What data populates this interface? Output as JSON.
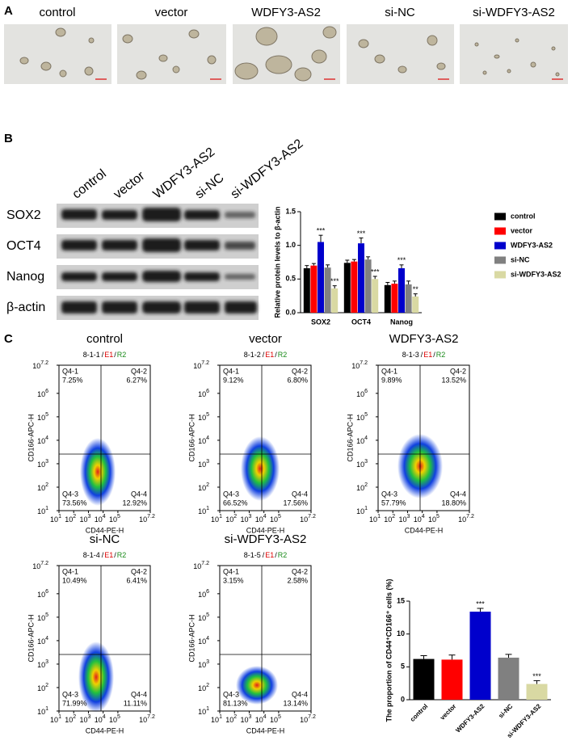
{
  "panel_labels": [
    "A",
    "B",
    "C"
  ],
  "micrographs": [
    "control",
    "vector",
    "WDFY3-AS2",
    "si-NC",
    "si-WDFY3-AS2"
  ],
  "western_blot": {
    "lanes": [
      "control",
      "vector",
      "WDFY3-AS2",
      "si-NC",
      "si-WDFY3-AS2"
    ],
    "proteins": [
      "SOX2",
      "OCT4",
      "Nanog",
      "β-actin"
    ]
  },
  "flow_cytometry": {
    "base": "10",
    "xlim": [
      1,
      7.2
    ],
    "ylim": [
      1,
      7.2
    ],
    "xticks": [
      1,
      2,
      3,
      4,
      5,
      7.2
    ],
    "yticks": [
      1,
      2,
      3,
      4,
      5,
      6,
      7.2
    ],
    "xlabel": "CD44-PE-H",
    "ylabel": "CD166-APC-H",
    "separator": "/",
    "gate_parts": [
      "E1",
      "R2"
    ],
    "quadrants": [
      "Q4-1",
      "Q4-2",
      "Q4-3",
      "Q4-4"
    ],
    "plots": [
      {
        "title": "control",
        "sample": "8-1-1",
        "percentages": [
          "7.25%",
          "6.27%",
          "73.56%",
          "12.92%"
        ]
      },
      {
        "title": "vector",
        "sample": "8-1-2",
        "percentages": [
          "9.12%",
          "6.80%",
          "66.52%",
          "17.56%"
        ]
      },
      {
        "title": "WDFY3-AS2",
        "sample": "8-1-3",
        "percentages": [
          "9.89%",
          "13.52%",
          "57.79%",
          "18.80%"
        ]
      },
      {
        "title": "si-NC",
        "sample": "8-1-4",
        "percentages": [
          "10.49%",
          "6.41%",
          "71.99%",
          "11.11%"
        ]
      },
      {
        "title": "si-WDFY3-AS2",
        "sample": "8-1-5",
        "percentages": [
          "3.15%",
          "2.58%",
          "81.13%",
          "13.14%"
        ]
      }
    ]
  },
  "chart_data": [
    {
      "type": "grouped_bar",
      "ylabel": "Relative protein levels to β-actin",
      "categories": [
        "SOX2",
        "OCT4",
        "Nanog"
      ],
      "ylim": [
        0,
        1.5
      ],
      "yticks": [
        {
          "value": 0,
          "label": "0.0"
        },
        0.5,
        {
          "value": 1,
          "label": "1.0"
        },
        1.5
      ],
      "legend": "right",
      "series": [
        {
          "name": "control",
          "color": "#000000",
          "values": [
            0.66,
            0.74,
            0.41
          ],
          "errors": [
            0.04,
            0.04,
            0.04
          ]
        },
        {
          "name": "vector",
          "color": "#ff0000",
          "values": [
            0.7,
            0.76,
            0.43
          ],
          "errors": [
            0.03,
            0.03,
            0.04
          ]
        },
        {
          "name": "WDFY3-AS2",
          "color": "#0000cc",
          "values": [
            1.05,
            1.03,
            0.66
          ],
          "errors": [
            0.1,
            0.08,
            0.05
          ],
          "significance": [
            "***",
            "***",
            "***"
          ]
        },
        {
          "name": "si-NC",
          "color": "#808080",
          "values": [
            0.67,
            0.79,
            0.42
          ],
          "errors": [
            0.04,
            0.04,
            0.05
          ]
        },
        {
          "name": "si-WDFY3-AS2",
          "color": "#d9d9a3",
          "values": [
            0.36,
            0.5,
            0.24
          ],
          "errors": [
            0.04,
            0.04,
            0.04
          ],
          "significance": [
            "***",
            "***",
            "**"
          ]
        }
      ]
    },
    {
      "type": "bar",
      "ylabel": "The proportion of CD44⁺CD166⁺ cells (%)",
      "categories": [
        "control",
        "vector",
        "WDFY3-AS2",
        "si-NC",
        "si-WDFY3-AS2"
      ],
      "values": [
        6.2,
        6.1,
        13.4,
        6.4,
        2.4
      ],
      "errors": [
        0.5,
        0.7,
        0.5,
        0.5,
        0.5
      ],
      "colors": [
        "#000000",
        "#ff0000",
        "#0000cc",
        "#808080",
        "#d9d9a3"
      ],
      "significance": [
        null,
        null,
        "***",
        null,
        "***"
      ],
      "ylim": [
        0,
        15
      ],
      "yticks": [
        0,
        5,
        10,
        15
      ]
    }
  ]
}
